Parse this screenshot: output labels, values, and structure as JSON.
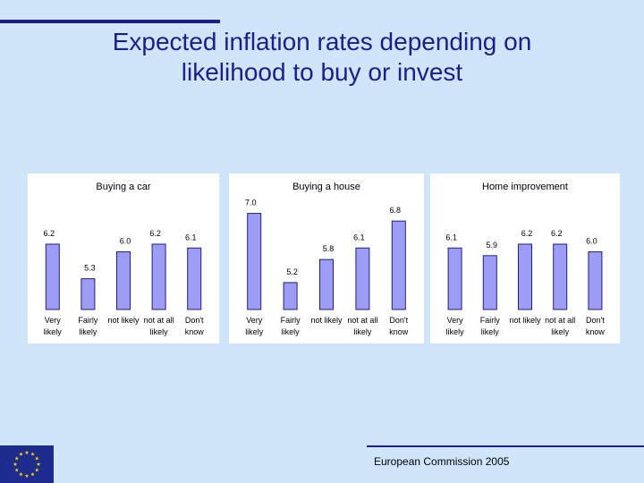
{
  "slide": {
    "title_line1": "Expected inflation rates depending on",
    "title_line2": "likelihood to buy or invest",
    "footer": "European Commission 2005",
    "logo": "eu-flag-icon"
  },
  "colors": {
    "background": "#cfe6fa",
    "title": "#1b1e8c",
    "bar_fill": "#9d9df5",
    "bar_stroke": "#1f2080",
    "panel": "#ffffff"
  },
  "chart_data": [
    {
      "type": "bar",
      "title": "Buying a car",
      "categories": [
        [
          "Very",
          "likely"
        ],
        [
          "Fairly",
          "likely"
        ],
        [
          "not likely"
        ],
        [
          "not at all",
          "likely"
        ],
        [
          "Don't",
          "know"
        ]
      ],
      "values": [
        6.2,
        5.3,
        6.0,
        6.2,
        6.1
      ],
      "labels": [
        "6.2",
        "5.3",
        "6.0",
        "6.2",
        "6.1"
      ],
      "ylim": [
        4.5,
        7.2
      ],
      "grid": false
    },
    {
      "type": "bar",
      "title": "Buying a house",
      "categories": [
        [
          "Very",
          "likely"
        ],
        [
          "Fairly",
          "likely"
        ],
        [
          "not likely"
        ],
        [
          "not at all",
          "likely"
        ],
        [
          "Don't",
          "know"
        ]
      ],
      "values": [
        7.0,
        5.2,
        5.8,
        6.1,
        6.8
      ],
      "labels": [
        "7.0",
        "5.2",
        "5.8",
        "6.1",
        "6.8"
      ],
      "ylim": [
        4.5,
        7.2
      ],
      "grid": false
    },
    {
      "type": "bar",
      "title": "Home improvement",
      "categories": [
        [
          "Very",
          "likely"
        ],
        [
          "Fairly",
          "likely"
        ],
        [
          "not likely"
        ],
        [
          "not at all",
          "likely"
        ],
        [
          "Don't",
          "know"
        ]
      ],
      "values": [
        6.1,
        5.9,
        6.2,
        6.2,
        6.0
      ],
      "labels": [
        "6.1",
        "5.9",
        "6.2",
        "6.2",
        "6.0"
      ],
      "ylim": [
        4.5,
        7.2
      ],
      "grid": false
    }
  ]
}
